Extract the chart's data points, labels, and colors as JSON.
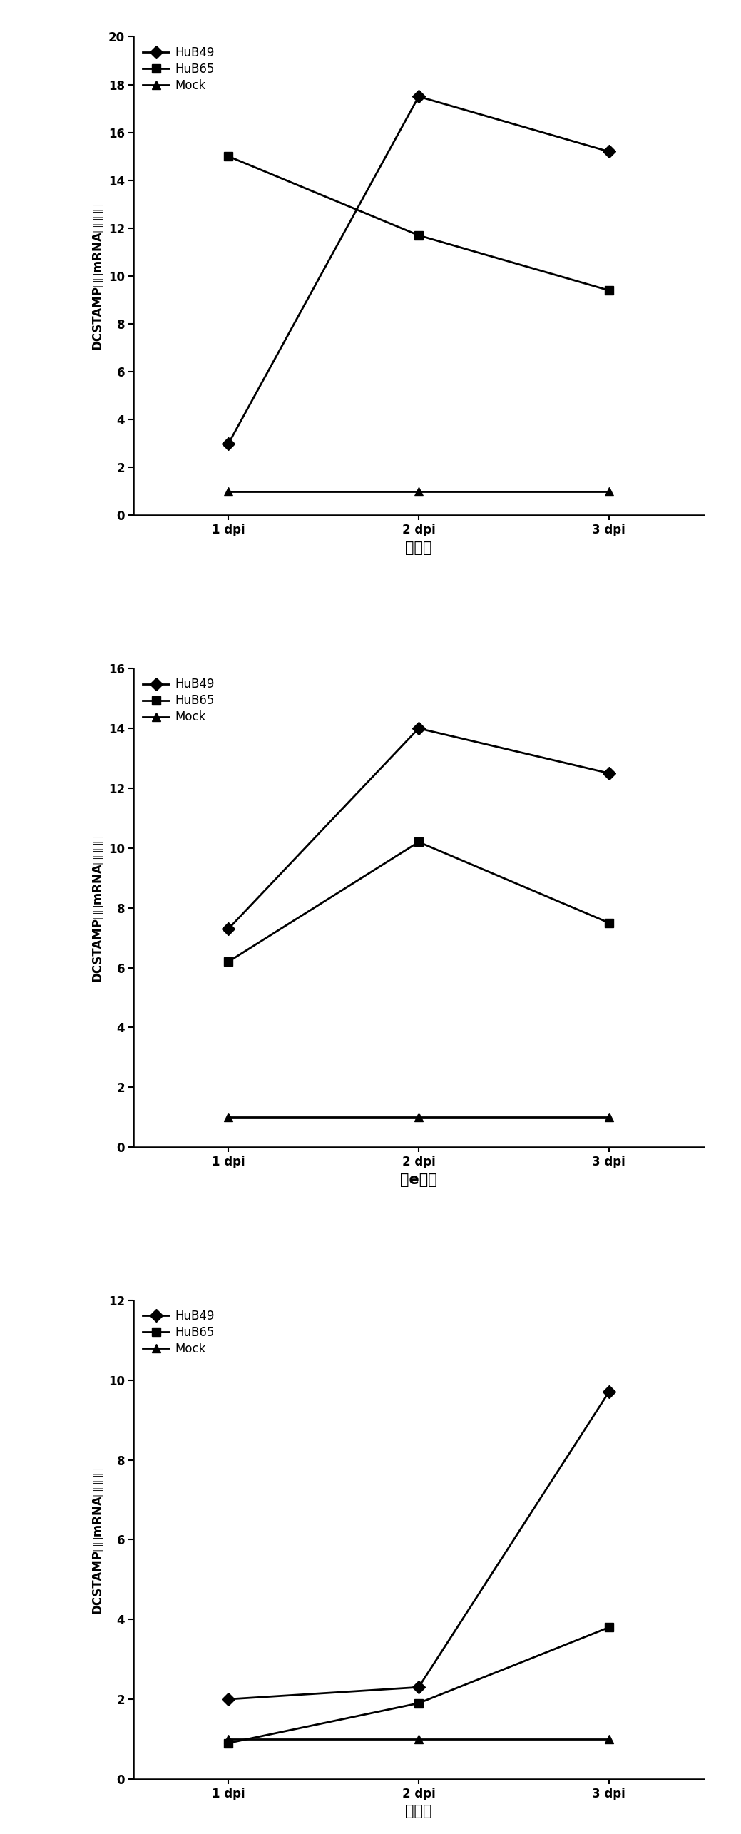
{
  "charts": [
    {
      "title": "",
      "xlabel": "脾组织",
      "ylabel": "DCSTAMP基因mRNA表达变化",
      "xlabels": [
        "1 dpi",
        "2 dpi",
        "3 dpi"
      ],
      "xvals": [
        1,
        2,
        3
      ],
      "ylim": [
        0,
        20
      ],
      "yticks": [
        0,
        2,
        4,
        6,
        8,
        10,
        12,
        14,
        16,
        18,
        20
      ],
      "series": [
        {
          "label": "HuB49",
          "values": [
            3.0,
            17.5,
            15.2
          ],
          "marker": "D",
          "color": "#000000"
        },
        {
          "label": "HuB65",
          "values": [
            15.0,
            11.7,
            9.4
          ],
          "marker": "s",
          "color": "#000000"
        },
        {
          "label": "Mock",
          "values": [
            1.0,
            1.0,
            1.0
          ],
          "marker": "^",
          "color": "#000000"
        }
      ]
    },
    {
      "title": "",
      "xlabel": "肺e组织",
      "ylabel": "DCSTAMP基因mRNA表达变化",
      "xlabels": [
        "1 dpi",
        "2 dpi",
        "3 dpi"
      ],
      "xvals": [
        1,
        2,
        3
      ],
      "ylim": [
        0,
        16
      ],
      "yticks": [
        0,
        2,
        4,
        6,
        8,
        10,
        12,
        14,
        16
      ],
      "series": [
        {
          "label": "HuB49",
          "values": [
            7.3,
            14.0,
            12.5
          ],
          "marker": "D",
          "color": "#000000"
        },
        {
          "label": "HuB65",
          "values": [
            6.2,
            10.2,
            7.5
          ],
          "marker": "s",
          "color": "#000000"
        },
        {
          "label": "Mock",
          "values": [
            1.0,
            1.0,
            1.0
          ],
          "marker": "^",
          "color": "#000000"
        }
      ]
    },
    {
      "title": "",
      "xlabel": "脑组织",
      "ylabel": "DCSTAMP基因mRNA表达变化",
      "xlabels": [
        "1 dpi",
        "2 dpi",
        "3 dpi"
      ],
      "xvals": [
        1,
        2,
        3
      ],
      "ylim": [
        0,
        12
      ],
      "yticks": [
        0,
        2,
        4,
        6,
        8,
        10,
        12
      ],
      "series": [
        {
          "label": "HuB49",
          "values": [
            2.0,
            2.3,
            9.7
          ],
          "marker": "D",
          "color": "#000000"
        },
        {
          "label": "HuB65",
          "values": [
            0.9,
            1.9,
            3.8
          ],
          "marker": "s",
          "color": "#000000"
        },
        {
          "label": "Mock",
          "values": [
            1.0,
            1.0,
            1.0
          ],
          "marker": "^",
          "color": "#000000"
        }
      ]
    }
  ],
  "line_width": 2.0,
  "marker_size": 9,
  "legend_fontsize": 12,
  "tick_fontsize": 12,
  "xlabel_fontsize": 15,
  "ylabel_ascii": "DCSTAMP",
  "figure_width": 10.39,
  "figure_height": 25.71,
  "dpi": 100
}
